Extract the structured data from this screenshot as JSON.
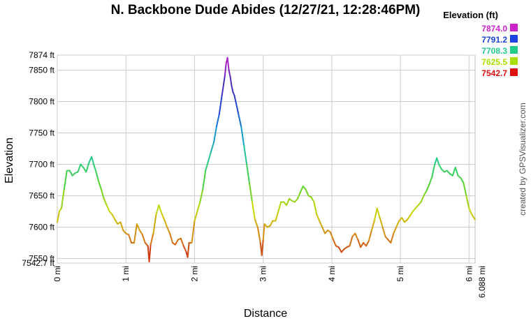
{
  "chart_data": {
    "type": "line",
    "title": "N. Backbone Dude Abides  (12/27/21, 12:28:46PM)",
    "xlabel": "Distance",
    "ylabel": "Elevation",
    "credit": "created by GPSVisualizer.com",
    "xlim": [
      0,
      6.088
    ],
    "ylim": [
      7542.7,
      7874
    ],
    "x_ticks": [
      {
        "value": 0,
        "label": "0 mi"
      },
      {
        "value": 1,
        "label": "1 mi"
      },
      {
        "value": 2,
        "label": "2 mi"
      },
      {
        "value": 3,
        "label": "3 mi"
      },
      {
        "value": 4,
        "label": "4 mi"
      },
      {
        "value": 5,
        "label": "5 mi"
      },
      {
        "value": 6,
        "label": "6 mi"
      },
      {
        "value": 6.088,
        "label": "6.088 mi"
      }
    ],
    "y_ticks": [
      {
        "value": 7542.7,
        "label": "7542.7 ft"
      },
      {
        "value": 7550,
        "label": "7550 ft"
      },
      {
        "value": 7600,
        "label": "7600 ft"
      },
      {
        "value": 7650,
        "label": "7650 ft"
      },
      {
        "value": 7700,
        "label": "7700 ft"
      },
      {
        "value": 7750,
        "label": "7750 ft"
      },
      {
        "value": 7800,
        "label": "7800 ft"
      },
      {
        "value": 7850,
        "label": "7850 ft"
      },
      {
        "value": 7874,
        "label": "7874 ft"
      }
    ],
    "grid": true,
    "legend": {
      "title": "Elevation (ft)",
      "placement": "top-right",
      "items": [
        {
          "label": "7874.0",
          "color": "#cc22cc"
        },
        {
          "label": "7791.2",
          "color": "#1a44dd"
        },
        {
          "label": "7708.3",
          "color": "#22cc88"
        },
        {
          "label": "7625.5",
          "color": "#aadd00"
        },
        {
          "label": "7542.7",
          "color": "#dd1111"
        }
      ]
    },
    "series": [
      {
        "x": [
          0.0,
          0.03,
          0.06,
          0.1,
          0.14,
          0.18,
          0.22,
          0.26,
          0.3,
          0.34,
          0.38,
          0.42,
          0.46,
          0.5,
          0.53,
          0.56,
          0.6,
          0.64,
          0.68,
          0.72,
          0.76,
          0.8,
          0.84,
          0.88,
          0.92,
          0.96,
          1.0,
          1.04,
          1.08,
          1.12,
          1.16,
          1.2,
          1.24,
          1.28,
          1.32,
          1.34,
          1.36,
          1.4,
          1.44,
          1.48,
          1.52,
          1.56,
          1.6,
          1.64,
          1.68,
          1.72,
          1.76,
          1.8,
          1.84,
          1.88,
          1.9,
          1.92,
          1.96,
          2.0,
          2.04,
          2.08,
          2.12,
          2.16,
          2.2,
          2.24,
          2.28,
          2.32,
          2.36,
          2.4,
          2.44,
          2.46,
          2.48,
          2.5,
          2.52,
          2.54,
          2.56,
          2.58,
          2.6,
          2.64,
          2.68,
          2.72,
          2.76,
          2.8,
          2.84,
          2.88,
          2.92,
          2.96,
          2.98,
          3.0,
          3.02,
          3.06,
          3.1,
          3.14,
          3.18,
          3.22,
          3.26,
          3.3,
          3.34,
          3.38,
          3.42,
          3.46,
          3.5,
          3.54,
          3.58,
          3.62,
          3.66,
          3.7,
          3.74,
          3.78,
          3.82,
          3.86,
          3.9,
          3.94,
          3.98,
          4.02,
          4.06,
          4.1,
          4.14,
          4.18,
          4.22,
          4.26,
          4.3,
          4.34,
          4.38,
          4.42,
          4.46,
          4.5,
          4.54,
          4.58,
          4.62,
          4.66,
          4.7,
          4.74,
          4.78,
          4.82,
          4.86,
          4.9,
          4.94,
          4.98,
          5.02,
          5.06,
          5.1,
          5.14,
          5.18,
          5.22,
          5.26,
          5.3,
          5.34,
          5.38,
          5.42,
          5.46,
          5.5,
          5.53,
          5.56,
          5.6,
          5.64,
          5.68,
          5.72,
          5.76,
          5.8,
          5.84,
          5.88,
          5.92,
          5.96,
          6.0,
          6.04,
          6.088
        ],
        "y": [
          7608,
          7625,
          7630,
          7660,
          7690,
          7690,
          7682,
          7686,
          7688,
          7700,
          7695,
          7688,
          7702,
          7712,
          7700,
          7690,
          7674,
          7660,
          7645,
          7635,
          7625,
          7620,
          7612,
          7605,
          7608,
          7595,
          7590,
          7588,
          7575,
          7575,
          7605,
          7595,
          7588,
          7575,
          7570,
          7545,
          7572,
          7590,
          7620,
          7635,
          7622,
          7612,
          7600,
          7590,
          7575,
          7572,
          7580,
          7582,
          7570,
          7560,
          7552,
          7575,
          7575,
          7610,
          7625,
          7640,
          7660,
          7690,
          7705,
          7720,
          7735,
          7760,
          7780,
          7810,
          7840,
          7860,
          7870,
          7850,
          7840,
          7825,
          7815,
          7810,
          7800,
          7780,
          7760,
          7730,
          7700,
          7670,
          7640,
          7612,
          7600,
          7575,
          7555,
          7580,
          7605,
          7600,
          7602,
          7610,
          7610,
          7625,
          7640,
          7640,
          7635,
          7645,
          7642,
          7640,
          7645,
          7655,
          7665,
          7660,
          7650,
          7648,
          7640,
          7620,
          7610,
          7600,
          7590,
          7595,
          7592,
          7580,
          7570,
          7568,
          7560,
          7565,
          7568,
          7570,
          7585,
          7590,
          7580,
          7568,
          7575,
          7570,
          7578,
          7595,
          7610,
          7630,
          7615,
          7600,
          7585,
          7580,
          7575,
          7590,
          7600,
          7610,
          7615,
          7608,
          7612,
          7618,
          7625,
          7630,
          7635,
          7640,
          7650,
          7658,
          7668,
          7680,
          7700,
          7710,
          7700,
          7692,
          7688,
          7690,
          7685,
          7682,
          7695,
          7682,
          7678,
          7670,
          7650,
          7630,
          7620,
          7612
        ]
      }
    ]
  }
}
